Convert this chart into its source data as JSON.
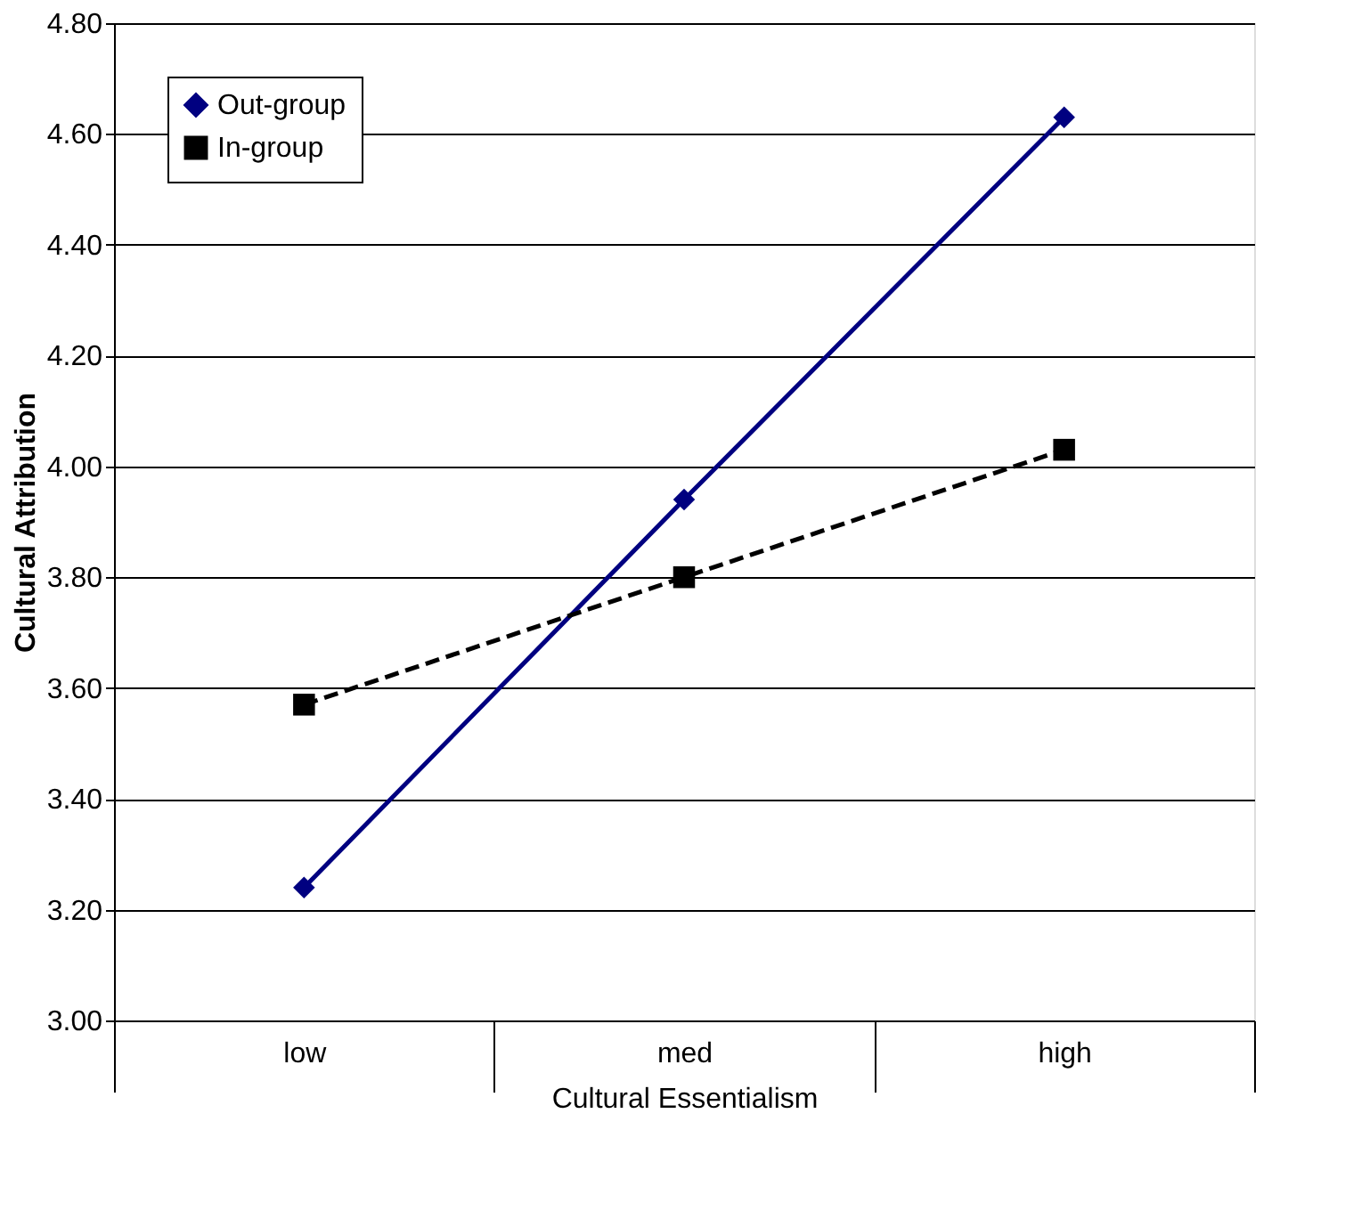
{
  "chart_data": {
    "type": "line",
    "xlabel": "Cultural Essentialism",
    "ylabel": "Cultural Attribution",
    "categories": [
      "low",
      "med",
      "high"
    ],
    "series": [
      {
        "name": "Out-group",
        "color": "#000080",
        "values": [
          3.24,
          3.94,
          4.63
        ],
        "marker": "diamond",
        "line_style": "solid"
      },
      {
        "name": "In-group",
        "color": "#000000",
        "values": [
          3.57,
          3.8,
          4.03
        ],
        "marker": "square",
        "line_style": "dashed"
      }
    ],
    "ylim": [
      3.0,
      4.8
    ],
    "yticks": [
      {
        "value": 3.0,
        "label": "3.00"
      },
      {
        "value": 3.2,
        "label": "3.20"
      },
      {
        "value": 3.4,
        "label": "3.40"
      },
      {
        "value": 3.6,
        "label": "3.60"
      },
      {
        "value": 3.8,
        "label": "3.80"
      },
      {
        "value": 4.0,
        "label": "4.00"
      },
      {
        "value": 4.2,
        "label": "4.20"
      },
      {
        "value": 4.4,
        "label": "4.40"
      },
      {
        "value": 4.6,
        "label": "4.60"
      },
      {
        "value": 4.8,
        "label": "4.80"
      }
    ],
    "grid": "y",
    "legend": "top left"
  }
}
